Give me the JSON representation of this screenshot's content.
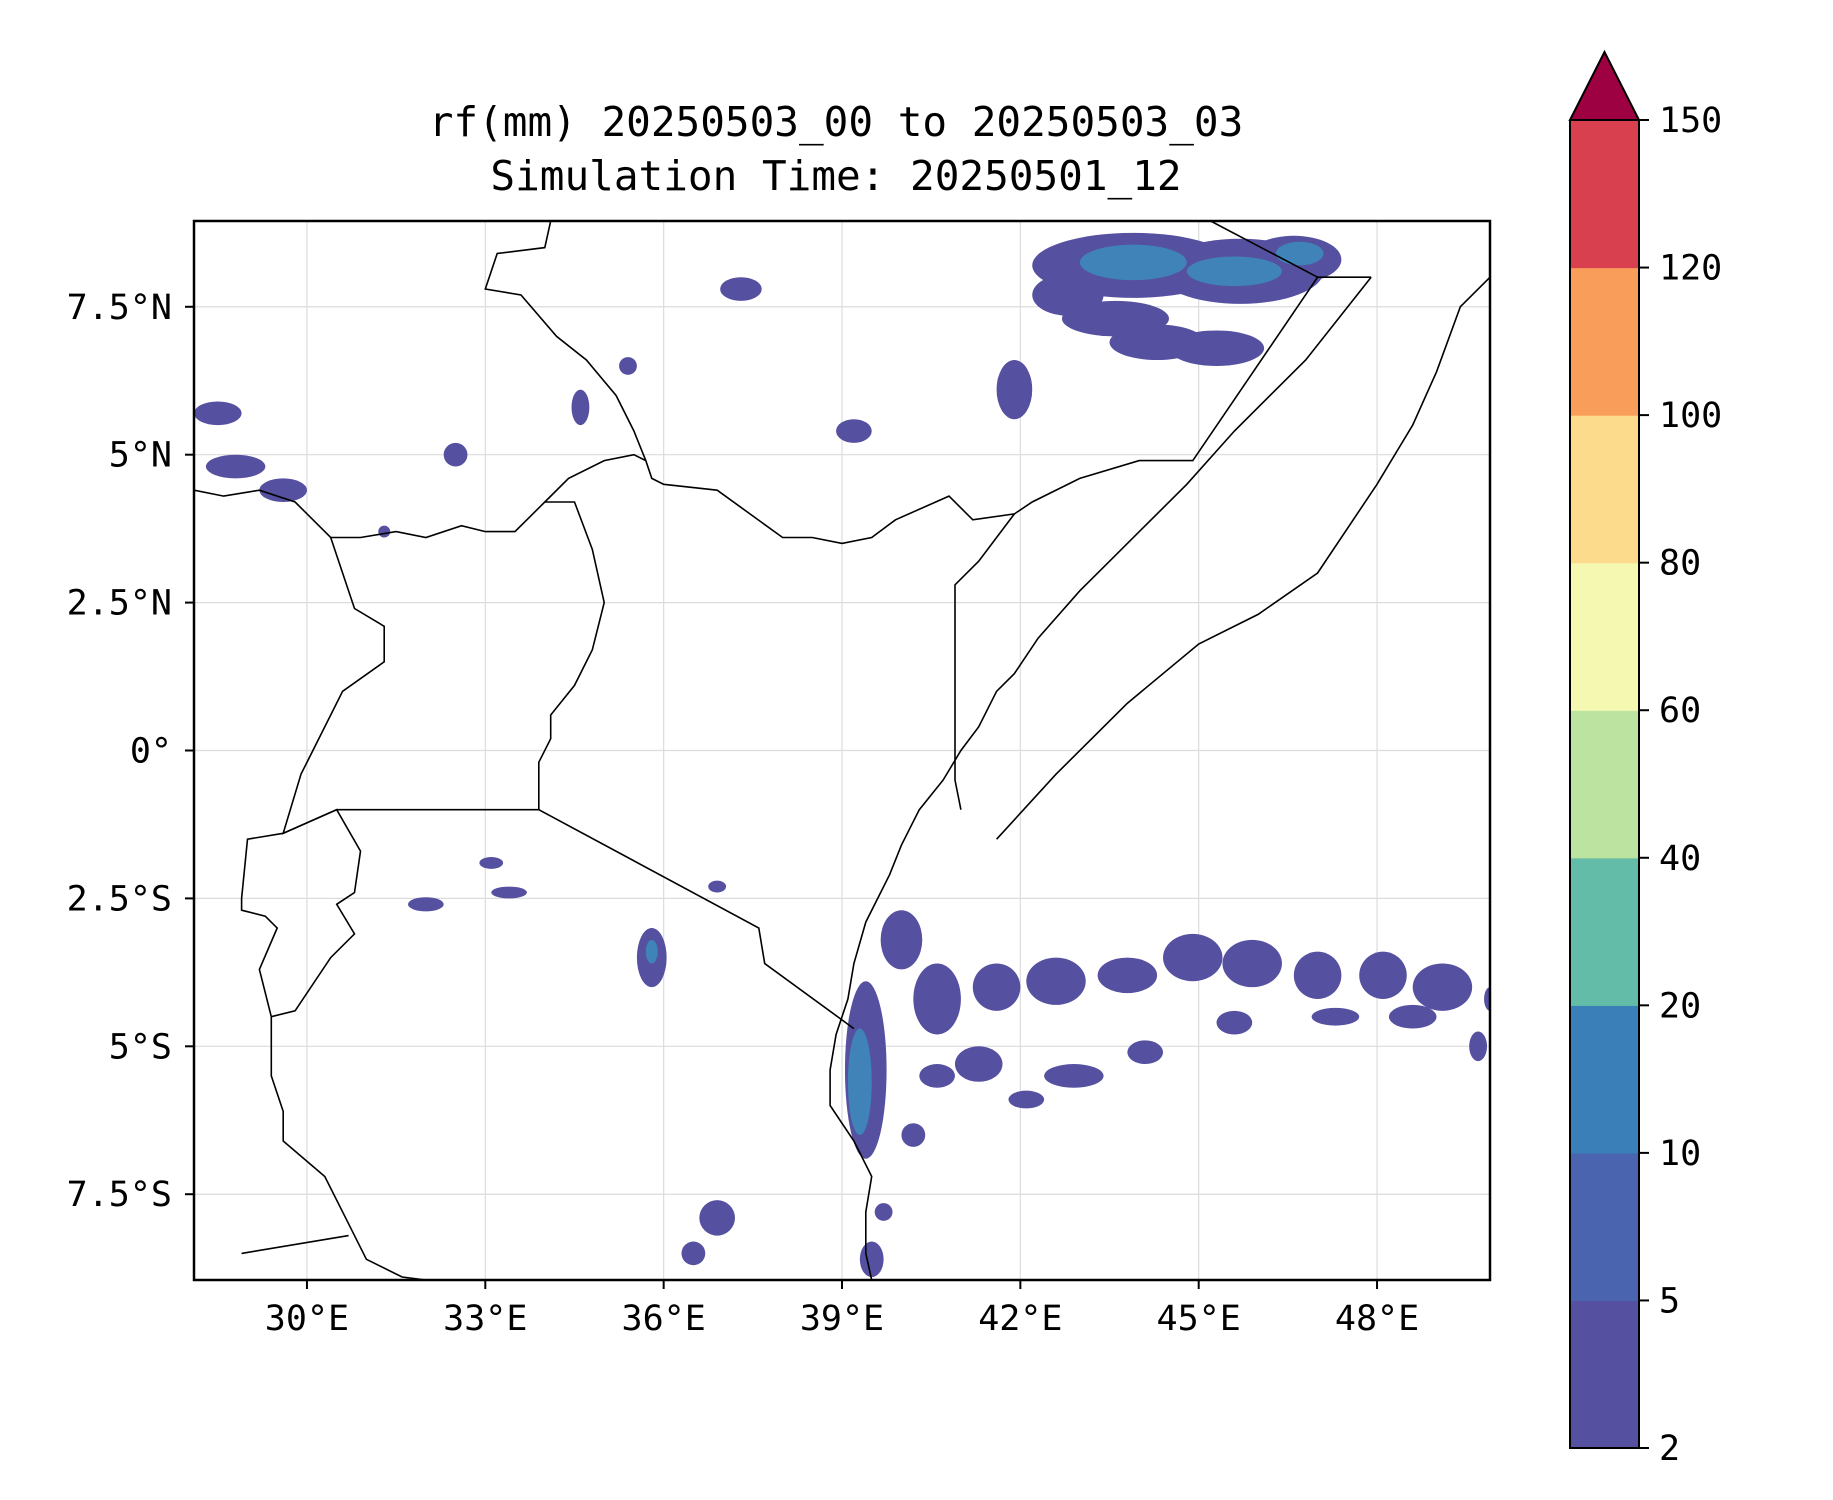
{
  "title": {
    "line1": "rf(mm) 20250503_00 to 20250503_03",
    "line2": "Simulation Time: 20250501_12"
  },
  "map": {
    "lon_range": [
      28.1,
      49.9
    ],
    "lat_range": [
      -8.95,
      8.95
    ],
    "lon_ticks": [
      30,
      33,
      36,
      39,
      42,
      45,
      48
    ],
    "lon_tick_labels": [
      "30°E",
      "33°E",
      "36°E",
      "39°E",
      "42°E",
      "45°E",
      "48°E"
    ],
    "lat_ticks": [
      7.5,
      5,
      2.5,
      0,
      -2.5,
      -5,
      -7.5
    ],
    "lat_tick_labels": [
      "7.5°N",
      "5°N",
      "2.5°N",
      "0°",
      "2.5°S",
      "5°S",
      "7.5°S"
    ],
    "gridlines": true,
    "rain_color": "#5650a0",
    "rain_color_mid": "#3f83b8",
    "borders": [
      [
        [
          28.1,
          4.4
        ],
        [
          28.6,
          4.3
        ],
        [
          29.2,
          4.4
        ],
        [
          29.8,
          4.2
        ],
        [
          30.4,
          3.6
        ],
        [
          30.9,
          3.6
        ],
        [
          31.5,
          3.7
        ],
        [
          32.0,
          3.6
        ],
        [
          32.6,
          3.8
        ],
        [
          33.0,
          3.7
        ],
        [
          33.5,
          3.7
        ],
        [
          34.0,
          4.2
        ],
        [
          34.4,
          4.6
        ],
        [
          35.0,
          4.9
        ],
        [
          35.5,
          5.0
        ],
        [
          35.7,
          4.9
        ],
        [
          35.8,
          4.6
        ],
        [
          36.0,
          4.5
        ],
        [
          36.9,
          4.4
        ],
        [
          38.0,
          3.6
        ],
        [
          38.5,
          3.6
        ],
        [
          39.0,
          3.5
        ],
        [
          39.5,
          3.6
        ],
        [
          39.9,
          3.9
        ],
        [
          40.8,
          4.3
        ],
        [
          41.2,
          3.9
        ],
        [
          41.9,
          4.0
        ],
        [
          42.2,
          4.2
        ],
        [
          43.0,
          4.6
        ],
        [
          44.0,
          4.9
        ],
        [
          44.9,
          4.9
        ],
        [
          47.0,
          8.0
        ],
        [
          47.9,
          8.0
        ]
      ],
      [
        [
          47.9,
          8.0
        ],
        [
          46.8,
          6.6
        ],
        [
          45.6,
          5.4
        ],
        [
          44.8,
          4.5
        ],
        [
          43.6,
          3.3
        ],
        [
          43.0,
          2.7
        ],
        [
          42.3,
          1.9
        ],
        [
          41.9,
          1.3
        ],
        [
          41.6,
          1.0
        ],
        [
          41.3,
          0.4
        ],
        [
          41.0,
          0.0
        ],
        [
          40.7,
          -0.5
        ],
        [
          40.3,
          -1.0
        ],
        [
          40.0,
          -1.6
        ],
        [
          39.8,
          -2.1
        ],
        [
          39.4,
          -2.9
        ],
        [
          39.2,
          -3.6
        ],
        [
          39.1,
          -4.2
        ],
        [
          38.9,
          -4.8
        ],
        [
          38.8,
          -5.4
        ],
        [
          38.8,
          -6.0
        ],
        [
          39.2,
          -6.6
        ],
        [
          39.5,
          -7.2
        ],
        [
          39.4,
          -7.8
        ],
        [
          39.4,
          -8.5
        ],
        [
          39.5,
          -8.95
        ]
      ],
      [
        [
          33.9,
          -1.0
        ],
        [
          33.9,
          -0.2
        ],
        [
          34.1,
          0.2
        ],
        [
          34.1,
          0.6
        ],
        [
          34.5,
          1.1
        ],
        [
          34.8,
          1.7
        ],
        [
          35.0,
          2.5
        ],
        [
          34.8,
          3.4
        ],
        [
          34.5,
          4.2
        ],
        [
          34.0,
          4.2
        ]
      ],
      [
        [
          33.9,
          -1.0
        ],
        [
          37.6,
          -3.0
        ],
        [
          37.7,
          -3.6
        ],
        [
          39.2,
          -4.7
        ]
      ],
      [
        [
          41.0,
          -1.0
        ],
        [
          40.9,
          -0.5
        ],
        [
          40.9,
          1.0
        ],
        [
          40.9,
          2.8
        ],
        [
          41.3,
          3.2
        ],
        [
          41.9,
          4.0
        ]
      ],
      [
        [
          30.4,
          3.6
        ],
        [
          30.8,
          2.4
        ],
        [
          31.3,
          2.1
        ],
        [
          31.3,
          1.5
        ],
        [
          30.6,
          1.0
        ],
        [
          30.1,
          0.0
        ],
        [
          29.9,
          -0.4
        ],
        [
          29.6,
          -1.4
        ],
        [
          30.5,
          -1.0
        ],
        [
          33.9,
          -1.0
        ]
      ],
      [
        [
          29.6,
          -1.4
        ],
        [
          30.5,
          -1.0
        ],
        [
          30.9,
          -1.7
        ],
        [
          30.8,
          -2.4
        ],
        [
          30.5,
          -2.6
        ],
        [
          30.8,
          -3.1
        ],
        [
          30.4,
          -3.5
        ],
        [
          29.8,
          -4.4
        ],
        [
          29.4,
          -4.5
        ]
      ],
      [
        [
          29.6,
          -1.4
        ],
        [
          29.0,
          -1.5
        ],
        [
          28.9,
          -2.5
        ],
        [
          28.9,
          -2.7
        ],
        [
          29.3,
          -2.8
        ],
        [
          29.5,
          -3.0
        ],
        [
          29.2,
          -3.7
        ],
        [
          29.4,
          -4.5
        ],
        [
          29.4,
          -5.5
        ],
        [
          29.6,
          -6.1
        ],
        [
          29.6,
          -6.6
        ],
        [
          30.3,
          -7.2
        ],
        [
          30.7,
          -8.0
        ],
        [
          31.0,
          -8.6
        ],
        [
          31.6,
          -8.9
        ],
        [
          32.0,
          -8.95
        ]
      ],
      [
        [
          28.9,
          -8.5
        ],
        [
          30.7,
          -8.2
        ]
      ],
      [
        [
          35.7,
          4.9
        ],
        [
          35.5,
          5.4
        ],
        [
          35.2,
          6.0
        ],
        [
          34.7,
          6.6
        ],
        [
          34.2,
          7.0
        ],
        [
          33.6,
          7.7
        ],
        [
          33.0,
          7.8
        ],
        [
          33.2,
          8.4
        ],
        [
          34.0,
          8.5
        ],
        [
          34.1,
          8.95
        ]
      ],
      [
        [
          45.2,
          8.95
        ],
        [
          47.0,
          8.0
        ]
      ],
      [
        [
          49.9,
          8.0
        ],
        [
          49.4,
          7.5
        ],
        [
          49.0,
          6.4
        ],
        [
          48.6,
          5.5
        ],
        [
          48.0,
          4.5
        ],
        [
          47.0,
          3.0
        ],
        [
          46.0,
          2.3
        ],
        [
          45.0,
          1.8
        ],
        [
          43.8,
          0.8
        ],
        [
          42.6,
          -0.4
        ],
        [
          41.6,
          -1.5
        ]
      ]
    ],
    "rain_blobs": [
      [
        43.9,
        8.2,
        1.7,
        0.55
      ],
      [
        45.7,
        8.1,
        1.4,
        0.55
      ],
      [
        46.6,
        8.3,
        0.8,
        0.4
      ],
      [
        42.8,
        7.7,
        0.6,
        0.35
      ],
      [
        43.6,
        7.3,
        0.9,
        0.3
      ],
      [
        44.3,
        6.9,
        0.8,
        0.3
      ],
      [
        45.3,
        6.8,
        0.8,
        0.3
      ],
      [
        41.9,
        6.1,
        0.3,
        0.5
      ],
      [
        37.3,
        7.8,
        0.35,
        0.2
      ],
      [
        35.4,
        6.5,
        0.15,
        0.15
      ],
      [
        34.6,
        5.8,
        0.15,
        0.3
      ],
      [
        39.2,
        5.4,
        0.3,
        0.2
      ],
      [
        28.5,
        5.7,
        0.4,
        0.2
      ],
      [
        28.8,
        4.8,
        0.5,
        0.2
      ],
      [
        29.6,
        4.4,
        0.4,
        0.2
      ],
      [
        32.5,
        5.0,
        0.2,
        0.2
      ],
      [
        31.3,
        3.7,
        0.1,
        0.1
      ],
      [
        36.9,
        -2.3,
        0.15,
        0.1
      ],
      [
        33.1,
        -1.9,
        0.2,
        0.1
      ],
      [
        33.4,
        -2.4,
        0.3,
        0.1
      ],
      [
        32.0,
        -2.6,
        0.3,
        0.12
      ],
      [
        35.8,
        -3.5,
        0.25,
        0.5
      ],
      [
        36.9,
        -7.9,
        0.3,
        0.3
      ],
      [
        36.5,
        -8.5,
        0.2,
        0.2
      ],
      [
        39.4,
        -5.4,
        0.35,
        1.5
      ],
      [
        40.0,
        -3.2,
        0.35,
        0.5
      ],
      [
        40.6,
        -4.2,
        0.4,
        0.6
      ],
      [
        41.6,
        -4.0,
        0.4,
        0.4
      ],
      [
        42.6,
        -3.9,
        0.5,
        0.4
      ],
      [
        43.8,
        -3.8,
        0.5,
        0.3
      ],
      [
        44.9,
        -3.5,
        0.5,
        0.4
      ],
      [
        45.9,
        -3.6,
        0.5,
        0.4
      ],
      [
        47.0,
        -3.8,
        0.4,
        0.4
      ],
      [
        48.1,
        -3.8,
        0.4,
        0.4
      ],
      [
        49.1,
        -4.0,
        0.5,
        0.4
      ],
      [
        41.3,
        -5.3,
        0.4,
        0.3
      ],
      [
        42.9,
        -5.5,
        0.5,
        0.2
      ],
      [
        44.1,
        -5.1,
        0.3,
        0.2
      ],
      [
        45.6,
        -4.6,
        0.3,
        0.2
      ],
      [
        47.3,
        -4.5,
        0.4,
        0.15
      ],
      [
        48.6,
        -4.5,
        0.4,
        0.2
      ],
      [
        40.6,
        -5.5,
        0.3,
        0.2
      ],
      [
        42.1,
        -5.9,
        0.3,
        0.15
      ],
      [
        40.2,
        -6.5,
        0.2,
        0.2
      ],
      [
        49.7,
        -5.0,
        0.15,
        0.25
      ],
      [
        39.7,
        -7.8,
        0.15,
        0.15
      ],
      [
        39.5,
        -8.6,
        0.2,
        0.3
      ],
      [
        49.9,
        -4.2,
        0.1,
        0.2
      ]
    ],
    "rain_blobs_mid": [
      [
        43.9,
        8.25,
        0.9,
        0.3
      ],
      [
        45.6,
        8.1,
        0.8,
        0.25
      ],
      [
        46.7,
        8.4,
        0.4,
        0.2
      ],
      [
        39.3,
        -5.6,
        0.2,
        0.9
      ],
      [
        35.8,
        -3.4,
        0.1,
        0.2
      ]
    ]
  },
  "colorbar": {
    "levels": [
      2,
      5,
      10,
      20,
      40,
      60,
      80,
      100,
      120,
      150
    ],
    "tick_labels": [
      "2",
      "5",
      "10",
      "20",
      "40",
      "60",
      "80",
      "100",
      "120",
      "150"
    ],
    "colors": [
      "#5650a0",
      "#4a64b0",
      "#3a7fb8",
      "#62bca7",
      "#bde3a0",
      "#f5f8b0",
      "#fcdc8c",
      "#f99d5b",
      "#d9404f"
    ],
    "extend_color": "#9e0142"
  }
}
